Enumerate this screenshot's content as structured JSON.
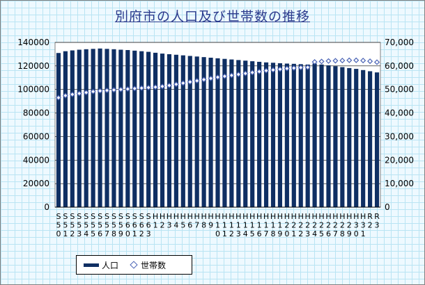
{
  "title": "別府市の人口及び世帯数の推移",
  "colors": {
    "bar": "#0f2f63",
    "marker_stroke": "#4a63b5",
    "marker_fill": "#ffffff",
    "grid": "#b9e4f3",
    "background": "#eef9ff"
  },
  "legend": {
    "population": "人口",
    "households": "世帯数"
  },
  "chart_data": {
    "type": "bar",
    "title": "別府市の人口及び世帯数の推移",
    "categories": [
      [
        "S",
        "5",
        "0"
      ],
      [
        "S",
        "5",
        "1"
      ],
      [
        "S",
        "5",
        "2"
      ],
      [
        "S",
        "5",
        "3"
      ],
      [
        "S",
        "5",
        "4"
      ],
      [
        "S",
        "5",
        "5"
      ],
      [
        "S",
        "5",
        "6"
      ],
      [
        "S",
        "5",
        "7"
      ],
      [
        "S",
        "5",
        "8"
      ],
      [
        "S",
        "5",
        "9"
      ],
      [
        "S",
        "6",
        "0"
      ],
      [
        "S",
        "6",
        "1"
      ],
      [
        "S",
        "6",
        "2"
      ],
      [
        "S",
        "6",
        "3"
      ],
      [
        "H",
        "1",
        ""
      ],
      [
        "H",
        "2",
        ""
      ],
      [
        "H",
        "3",
        ""
      ],
      [
        "H",
        "4",
        ""
      ],
      [
        "H",
        "5",
        ""
      ],
      [
        "H",
        "6",
        ""
      ],
      [
        "H",
        "7",
        ""
      ],
      [
        "H",
        "8",
        ""
      ],
      [
        "H",
        "9",
        ""
      ],
      [
        "H",
        "1",
        "0"
      ],
      [
        "H",
        "1",
        "1"
      ],
      [
        "H",
        "1",
        "2"
      ],
      [
        "H",
        "1",
        "3"
      ],
      [
        "H",
        "1",
        "4"
      ],
      [
        "H",
        "1",
        "5"
      ],
      [
        "H",
        "1",
        "6"
      ],
      [
        "H",
        "1",
        "7"
      ],
      [
        "H",
        "1",
        "8"
      ],
      [
        "H",
        "1",
        "9"
      ],
      [
        "H",
        "2",
        "0"
      ],
      [
        "H",
        "2",
        "1"
      ],
      [
        "H",
        "2",
        "2"
      ],
      [
        "H",
        "2",
        "3"
      ],
      [
        "H",
        "2",
        "4"
      ],
      [
        "H",
        "2",
        "5"
      ],
      [
        "H",
        "2",
        "6"
      ],
      [
        "H",
        "2",
        "7"
      ],
      [
        "H",
        "2",
        "8"
      ],
      [
        "H",
        "2",
        "9"
      ],
      [
        "H",
        "3",
        "0"
      ],
      [
        "H",
        "3",
        "1"
      ],
      [
        "R",
        "2",
        ""
      ],
      [
        "R",
        "3",
        ""
      ]
    ],
    "series": [
      {
        "name": "人口",
        "type": "bar",
        "axis": "left",
        "values": [
          131000,
          132500,
          133200,
          133800,
          134200,
          134500,
          134800,
          134500,
          134200,
          133800,
          133500,
          133000,
          132500,
          132000,
          131200,
          130500,
          130000,
          129500,
          129000,
          128500,
          128000,
          127500,
          127000,
          126500,
          126000,
          125500,
          125000,
          124500,
          124000,
          123500,
          123000,
          122700,
          122300,
          122000,
          121800,
          121500,
          121200,
          122000,
          121200,
          120500,
          119800,
          119000,
          118200,
          117500,
          116500,
          115500,
          114500
        ]
      },
      {
        "name": "世帯数",
        "type": "scatter",
        "axis": "right",
        "values": [
          46500,
          47400,
          47900,
          48300,
          48700,
          49100,
          49400,
          49600,
          49800,
          50000,
          50200,
          50400,
          50600,
          50800,
          51000,
          51300,
          51700,
          52200,
          52700,
          53200,
          53700,
          54200,
          54700,
          55200,
          55600,
          56000,
          56400,
          56800,
          57200,
          57600,
          58000,
          58300,
          58600,
          58900,
          59100,
          59300,
          59400,
          61700,
          61900,
          62100,
          62200,
          62300,
          62400,
          62400,
          62300,
          62000,
          61600
        ]
      }
    ],
    "y_left": {
      "range": [
        0,
        140000
      ],
      "ticks": [
        "0",
        "20000",
        "40000",
        "60000",
        "80000",
        "100000",
        "120000",
        "140000"
      ]
    },
    "y_right": {
      "range": [
        0,
        70000
      ],
      "ticks": [
        "0",
        "10,000",
        "20,000",
        "30,000",
        "40,000",
        "50,000",
        "60,000",
        "70,000"
      ]
    },
    "grid": true,
    "legend_position": "bottom-left"
  }
}
